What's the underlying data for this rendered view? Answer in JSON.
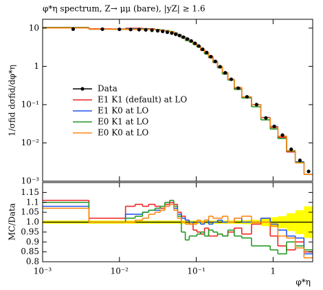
{
  "chart_data": [
    {
      "type": "histogram",
      "title": "φ*η spectrum, Z→ μμ (bare), |yZ| ≥ 1.6",
      "ylabel": "1/σfid dσfid/dφ*η",
      "bins": [
        0.001,
        0.004,
        0.008,
        0.012,
        0.016,
        0.02,
        0.024,
        0.029,
        0.034,
        0.039,
        0.045,
        0.051,
        0.057,
        0.064,
        0.072,
        0.081,
        0.091,
        0.102,
        0.114,
        0.128,
        0.145,
        0.165,
        0.189,
        0.219,
        0.258,
        0.312,
        0.391,
        0.524,
        0.695,
        0.918,
        1.153,
        1.496,
        1.947,
        2.522,
        3.277
      ],
      "xlim": [
        0.001,
        3.277
      ],
      "xlog": true,
      "ylim": [
        0.001,
        17
      ],
      "ylog": true,
      "yticks": [
        {
          "value": 0.001,
          "label": "10⁻³"
        },
        {
          "value": 0.01,
          "label": "10⁻²"
        },
        {
          "value": 0.1,
          "label": "10⁻¹"
        },
        1,
        10
      ],
      "legend": "middle left",
      "series": [
        {
          "name": "Data",
          "color": "#000000",
          "marker": "point",
          "values": [
            9.4,
            9.4,
            9.3,
            9.2,
            9.1,
            9.0,
            8.8,
            8.5,
            8.2,
            7.8,
            7.4,
            6.9,
            6.4,
            5.8,
            5.2,
            4.6,
            4.0,
            3.4,
            2.8,
            2.3,
            1.8,
            1.35,
            0.98,
            0.68,
            0.46,
            0.27,
            0.16,
            0.1,
            0.045,
            0.027,
            0.016,
            0.0068,
            0.0035,
            0.0018
          ]
        },
        {
          "name": "E1 K1 (default) at LO",
          "color": "#ee2222",
          "marker": "step",
          "values": [
            10.4,
            9.6,
            9.5,
            9.9,
            9.9,
            9.7,
            9.6,
            9.2,
            8.8,
            8.5,
            8.1,
            7.5,
            6.7,
            6.0,
            5.3,
            4.6,
            3.8,
            3.2,
            2.6,
            2.2,
            1.67,
            1.26,
            0.92,
            0.63,
            0.44,
            0.26,
            0.15,
            0.099,
            0.046,
            0.025,
            0.014,
            0.0058,
            0.0032,
            0.0015
          ]
        },
        {
          "name": "E1 K0 at LO",
          "color": "#2255ee",
          "marker": "step",
          "values": [
            10.2,
            9.4,
            9.3,
            9.6,
            9.5,
            9.5,
            9.3,
            9.0,
            8.7,
            8.4,
            8.1,
            7.4,
            6.7,
            5.9,
            5.3,
            4.6,
            4.0,
            3.4,
            2.8,
            2.3,
            1.8,
            1.35,
            0.99,
            0.68,
            0.46,
            0.28,
            0.16,
            0.1,
            0.046,
            0.027,
            0.015,
            0.0063,
            0.0032,
            0.0015
          ]
        },
        {
          "name": "E0 K1 at LO",
          "color": "#229922",
          "marker": "step",
          "values": [
            10.3,
            9.4,
            9.3,
            9.4,
            9.4,
            9.5,
            9.3,
            9.1,
            8.9,
            8.6,
            8.2,
            7.5,
            6.6,
            5.5,
            4.7,
            4.3,
            3.7,
            3.2,
            2.7,
            2.1,
            1.73,
            1.28,
            0.92,
            0.63,
            0.44,
            0.25,
            0.15,
            0.088,
            0.04,
            0.023,
            0.013,
            0.0061,
            0.0031,
            0.0015
          ]
        },
        {
          "name": "E0 K0 at LO",
          "color": "#ff8811",
          "marker": "step",
          "values": [
            10.1,
            9.4,
            9.3,
            9.2,
            9.2,
            9.2,
            9.2,
            8.9,
            8.7,
            8.4,
            8.1,
            7.3,
            6.5,
            5.8,
            5.1,
            4.6,
            4.0,
            3.4,
            2.8,
            2.3,
            1.85,
            1.38,
            1.0,
            0.7,
            0.46,
            0.28,
            0.16,
            0.1,
            0.045,
            0.026,
            0.015,
            0.0063,
            0.003,
            0.0015
          ]
        }
      ]
    },
    {
      "type": "ratio",
      "ylabel": "MC/Data",
      "xlabel": "φ*η",
      "xlim": [
        0.001,
        3.277
      ],
      "xlog": true,
      "xticks": [
        {
          "value": 0.001,
          "label": "10⁻³"
        },
        {
          "value": 0.01,
          "label": "10⁻²"
        },
        {
          "value": 0.1,
          "label": "10⁻¹"
        },
        1
      ],
      "ylim": [
        0.8,
        1.2
      ],
      "yticks": [
        0.8,
        0.85,
        0.9,
        0.95,
        {
          "value": 1,
          "label": "1.0"
        },
        1.05,
        1.1,
        1.15
      ],
      "band_color": "#ffff00",
      "data_uncertainty": [
        0.008,
        0.008,
        0.008,
        0.008,
        0.008,
        0.008,
        0.008,
        0.008,
        0.008,
        0.008,
        0.008,
        0.008,
        0.008,
        0.008,
        0.008,
        0.008,
        0.008,
        0.008,
        0.008,
        0.008,
        0.008,
        0.008,
        0.008,
        0.008,
        0.008,
        0.009,
        0.01,
        0.012,
        0.02,
        0.025,
        0.03,
        0.045,
        0.06,
        0.08
      ],
      "series": [
        {
          "color": "#ee2222",
          "values": [
            1.11,
            1.02,
            1.02,
            1.08,
            1.09,
            1.08,
            1.09,
            1.08,
            1.07,
            1.09,
            1.1,
            1.09,
            1.05,
            1.03,
            1.01,
            0.99,
            0.96,
            0.95,
            0.94,
            0.97,
            0.93,
            0.93,
            0.94,
            0.93,
            0.95,
            0.97,
            0.94,
            0.99,
            1.02,
            0.93,
            0.88,
            0.86,
            0.9,
            0.85
          ]
        },
        {
          "color": "#2255ee",
          "values": [
            1.08,
            1.0,
            1.0,
            1.04,
            1.04,
            1.05,
            1.06,
            1.06,
            1.06,
            1.08,
            1.09,
            1.07,
            1.04,
            1.02,
            1.01,
            1.0,
            0.99,
            1.0,
            0.99,
            1.01,
            0.99,
            1.0,
            1.01,
            1.0,
            1.0,
            1.02,
            1.0,
            1.0,
            1.02,
            0.99,
            0.96,
            0.93,
            0.92,
            0.84
          ]
        },
        {
          "color": "#229922",
          "values": [
            1.1,
            1.0,
            1.0,
            1.02,
            1.03,
            1.05,
            1.06,
            1.07,
            1.08,
            1.1,
            1.11,
            1.08,
            1.03,
            0.95,
            0.91,
            0.93,
            0.93,
            0.94,
            0.95,
            0.93,
            0.96,
            0.95,
            0.94,
            0.93,
            0.96,
            0.93,
            0.92,
            0.88,
            0.88,
            0.86,
            0.84,
            0.9,
            0.88,
            0.86
          ]
        },
        {
          "color": "#ff8811",
          "values": [
            1.07,
            1.0,
            1.0,
            1.0,
            1.01,
            1.02,
            1.04,
            1.05,
            1.06,
            1.08,
            1.09,
            1.06,
            1.02,
            1.0,
            0.99,
            0.99,
            0.99,
            1.01,
            1.0,
            1.01,
            1.03,
            1.02,
            1.02,
            1.03,
            1.0,
            1.02,
            1.03,
            1.0,
            1.0,
            0.98,
            0.93,
            0.92,
            0.87,
            0.82
          ]
        }
      ]
    }
  ]
}
